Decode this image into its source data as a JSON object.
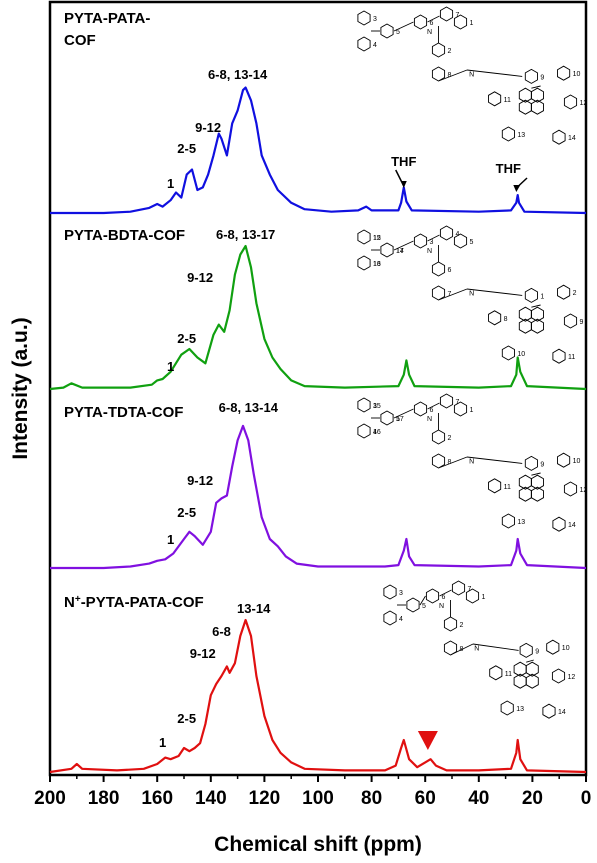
{
  "chart_data": {
    "type": "line",
    "xlabel": "Chemical shift (ppm)",
    "ylabel": "Intensity (a.u.)",
    "xlim": [
      200,
      0
    ],
    "x_reversed": true,
    "xticks": [
      "200",
      "180",
      "160",
      "140",
      "120",
      "100",
      "80",
      "60",
      "40",
      "20",
      "0"
    ],
    "grid": false,
    "spectra": [
      {
        "title": "PYTA-PATA-\nCOF",
        "color": "#1010e0",
        "labels": [
          "1",
          "2-5",
          "9-12",
          "6-8, 13-14",
          "THF",
          "THF"
        ],
        "structure_labels": [
          "3",
          "4",
          "5",
          "6",
          "7",
          "1",
          "2",
          "8",
          "9",
          "10",
          "11",
          "12",
          "13",
          "14"
        ],
        "points": [
          [
            200,
            0
          ],
          [
            180,
            0
          ],
          [
            170,
            0.01
          ],
          [
            163,
            0.04
          ],
          [
            160,
            0.07
          ],
          [
            158,
            0.05
          ],
          [
            155,
            0.1
          ],
          [
            153,
            0.16
          ],
          [
            151,
            0.12
          ],
          [
            149,
            0.3
          ],
          [
            147,
            0.34
          ],
          [
            145,
            0.18
          ],
          [
            143,
            0.2
          ],
          [
            141,
            0.3
          ],
          [
            139,
            0.45
          ],
          [
            137,
            0.62
          ],
          [
            136,
            0.58
          ],
          [
            134,
            0.45
          ],
          [
            132,
            0.7
          ],
          [
            130,
            0.8
          ],
          [
            128,
            0.96
          ],
          [
            127,
            0.98
          ],
          [
            125,
            0.88
          ],
          [
            123,
            0.7
          ],
          [
            121,
            0.45
          ],
          [
            118,
            0.3
          ],
          [
            115,
            0.18
          ],
          [
            110,
            0.08
          ],
          [
            105,
            0.03
          ],
          [
            95,
            0.01
          ],
          [
            85,
            0.02
          ],
          [
            82,
            0.05
          ],
          [
            80,
            0.02
          ],
          [
            70,
            0.02
          ],
          [
            69,
            0.08
          ],
          [
            68,
            0.2
          ],
          [
            67,
            0.09
          ],
          [
            65,
            0.02
          ],
          [
            40,
            0.01
          ],
          [
            28,
            0.02
          ],
          [
            26,
            0.08
          ],
          [
            25.5,
            0.14
          ],
          [
            25,
            0.08
          ],
          [
            23,
            0.01
          ],
          [
            0,
            0
          ]
        ]
      },
      {
        "title": "PYTA-BDTA-COF",
        "color": "#10a010",
        "labels": [
          "1",
          "2-5",
          "9-12",
          "6-8, 13-17"
        ],
        "structure_labels": [
          "15",
          "16",
          "17",
          "3",
          "4",
          "5",
          "6",
          "7",
          "1",
          "2",
          "8",
          "9",
          "10",
          "11",
          "12",
          "13",
          "14"
        ],
        "points": [
          [
            200,
            0
          ],
          [
            195,
            0.01
          ],
          [
            192,
            0.04
          ],
          [
            188,
            0.01
          ],
          [
            170,
            0.01
          ],
          [
            162,
            0.03
          ],
          [
            160,
            0.06
          ],
          [
            158,
            0.07
          ],
          [
            155,
            0.12
          ],
          [
            151,
            0.24
          ],
          [
            148,
            0.28
          ],
          [
            145,
            0.22
          ],
          [
            142,
            0.18
          ],
          [
            139,
            0.38
          ],
          [
            137,
            0.45
          ],
          [
            135,
            0.4
          ],
          [
            133,
            0.55
          ],
          [
            131,
            0.8
          ],
          [
            129,
            0.94
          ],
          [
            127,
            1.0
          ],
          [
            125,
            0.85
          ],
          [
            123,
            0.6
          ],
          [
            120,
            0.35
          ],
          [
            117,
            0.22
          ],
          [
            114,
            0.14
          ],
          [
            110,
            0.06
          ],
          [
            105,
            0.02
          ],
          [
            90,
            0.01
          ],
          [
            70,
            0.02
          ],
          [
            68,
            0.1
          ],
          [
            67,
            0.2
          ],
          [
            66,
            0.1
          ],
          [
            64,
            0.02
          ],
          [
            40,
            0.01
          ],
          [
            28,
            0.02
          ],
          [
            26,
            0.1
          ],
          [
            25.5,
            0.22
          ],
          [
            24.5,
            0.12
          ],
          [
            22,
            0.02
          ],
          [
            0,
            0
          ]
        ]
      },
      {
        "title": "PYTA-TDTA-COF",
        "color": "#8010e0",
        "labels": [
          "1",
          "2-5",
          "9-12",
          "6-8, 13-14"
        ],
        "structure_labels": [
          "3",
          "4",
          "5",
          "6",
          "7",
          "1",
          "2",
          "8",
          "9",
          "10",
          "11",
          "12",
          "13",
          "14",
          "15",
          "16",
          "17"
        ],
        "points": [
          [
            200,
            0
          ],
          [
            180,
            0
          ],
          [
            170,
            0.01
          ],
          [
            163,
            0.03
          ],
          [
            160,
            0.05
          ],
          [
            157,
            0.06
          ],
          [
            154,
            0.1
          ],
          [
            150,
            0.2
          ],
          [
            148,
            0.25
          ],
          [
            146,
            0.22
          ],
          [
            143,
            0.16
          ],
          [
            140,
            0.25
          ],
          [
            138,
            0.45
          ],
          [
            136,
            0.48
          ],
          [
            134,
            0.5
          ],
          [
            132,
            0.7
          ],
          [
            130,
            0.88
          ],
          [
            128,
            0.98
          ],
          [
            126,
            0.88
          ],
          [
            124,
            0.65
          ],
          [
            121,
            0.35
          ],
          [
            118,
            0.2
          ],
          [
            115,
            0.15
          ],
          [
            112,
            0.08
          ],
          [
            108,
            0.03
          ],
          [
            100,
            0.01
          ],
          [
            75,
            0.01
          ],
          [
            70,
            0.02
          ],
          [
            68,
            0.12
          ],
          [
            67,
            0.2
          ],
          [
            66,
            0.08
          ],
          [
            64,
            0.02
          ],
          [
            40,
            0.01
          ],
          [
            28,
            0.02
          ],
          [
            26,
            0.12
          ],
          [
            25.5,
            0.2
          ],
          [
            24.5,
            0.1
          ],
          [
            22,
            0.02
          ],
          [
            0,
            0
          ]
        ]
      },
      {
        "title": "N+-PYTA-PATA-COF",
        "color": "#e01010",
        "labels": [
          "1",
          "2-5",
          "9-12",
          "6-8",
          "13-14"
        ],
        "structure_labels": [
          "3",
          "4",
          "5",
          "6",
          "7",
          "1",
          "2",
          "8",
          "9",
          "10",
          "11",
          "12",
          "13",
          "14"
        ],
        "points": [
          [
            200,
            0
          ],
          [
            192,
            0.02
          ],
          [
            190,
            0.05
          ],
          [
            188,
            0.02
          ],
          [
            175,
            0.01
          ],
          [
            165,
            0.02
          ],
          [
            160,
            0.05
          ],
          [
            157,
            0.09
          ],
          [
            155,
            0.08
          ],
          [
            152,
            0.1
          ],
          [
            150,
            0.15
          ],
          [
            148,
            0.13
          ],
          [
            146,
            0.15
          ],
          [
            144,
            0.18
          ],
          [
            142,
            0.3
          ],
          [
            140,
            0.48
          ],
          [
            138,
            0.55
          ],
          [
            136,
            0.6
          ],
          [
            134,
            0.66
          ],
          [
            133,
            0.62
          ],
          [
            131,
            0.68
          ],
          [
            129,
            0.85
          ],
          [
            127,
            0.95
          ],
          [
            125,
            0.85
          ],
          [
            123,
            0.6
          ],
          [
            120,
            0.35
          ],
          [
            117,
            0.2
          ],
          [
            114,
            0.12
          ],
          [
            110,
            0.06
          ],
          [
            105,
            0.02
          ],
          [
            90,
            0.01
          ],
          [
            75,
            0.01
          ],
          [
            71,
            0.04
          ],
          [
            69,
            0.15
          ],
          [
            68,
            0.2
          ],
          [
            66,
            0.08
          ],
          [
            63,
            0.03
          ],
          [
            60,
            0.06
          ],
          [
            58,
            0.08
          ],
          [
            56,
            0.04
          ],
          [
            52,
            0.01
          ],
          [
            40,
            0.01
          ],
          [
            28,
            0.02
          ],
          [
            26,
            0.12
          ],
          [
            25.5,
            0.2
          ],
          [
            24.5,
            0.08
          ],
          [
            22,
            0.01
          ],
          [
            0,
            0
          ]
        ]
      }
    ]
  }
}
